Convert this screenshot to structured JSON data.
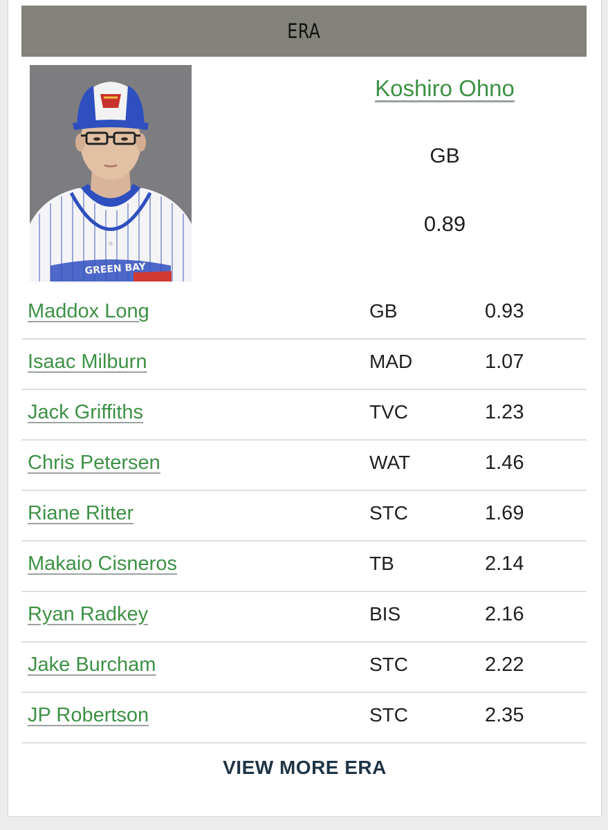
{
  "header": {
    "title": "ERA"
  },
  "leader": {
    "name": "Koshiro Ohno",
    "team": "GB",
    "value": "0.89",
    "photo_jersey_text": "GREEN BAY"
  },
  "rows": [
    {
      "name": "Maddox Long",
      "team": "GB",
      "value": "0.93"
    },
    {
      "name": "Isaac Milburn",
      "team": "MAD",
      "value": "1.07"
    },
    {
      "name": "Jack Griffiths",
      "team": "TVC",
      "value": "1.23"
    },
    {
      "name": "Chris Petersen",
      "team": "WAT",
      "value": "1.46"
    },
    {
      "name": "Riane Ritter",
      "team": "STC",
      "value": "1.69"
    },
    {
      "name": "Makaio Cisneros",
      "team": "TB",
      "value": "2.14"
    },
    {
      "name": "Ryan Radkey",
      "team": "BIS",
      "value": "2.16"
    },
    {
      "name": "Jake Burcham",
      "team": "STC",
      "value": "2.22"
    },
    {
      "name": "JP Robertson",
      "team": "STC",
      "value": "2.35"
    }
  ],
  "footer": {
    "view_more_label": "VIEW MORE ERA"
  },
  "colors": {
    "header_bg": "#83837b",
    "link_green": "#3d9145",
    "footer_link": "#1f3445"
  }
}
